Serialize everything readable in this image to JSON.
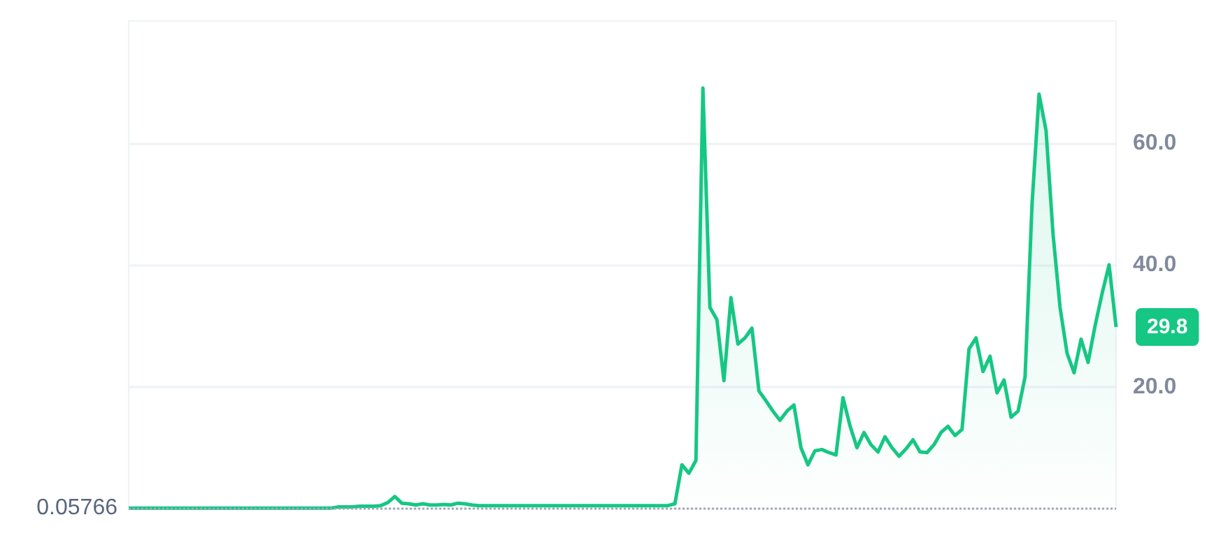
{
  "chart_data": {
    "type": "area",
    "categories": [
      null,
      null,
      null,
      null,
      null,
      null,
      null,
      null,
      null,
      null,
      null,
      null,
      null,
      null,
      null,
      null,
      null,
      null,
      null,
      null,
      null,
      null,
      null,
      null,
      null,
      null,
      null,
      null,
      null,
      null,
      null,
      null,
      null,
      null,
      null,
      null,
      null,
      null,
      null,
      null,
      null,
      null,
      null,
      null,
      null,
      null,
      null,
      null,
      null,
      null,
      null,
      null,
      null,
      null,
      null,
      null,
      null,
      null,
      null,
      null,
      null,
      null,
      null,
      null,
      null,
      null,
      null,
      null,
      null,
      null,
      null,
      null,
      null,
      null,
      null,
      null,
      null,
      null,
      null,
      null,
      null,
      null,
      null,
      null,
      null,
      null,
      null,
      null,
      null,
      null,
      null,
      null,
      null,
      null,
      null,
      null,
      null,
      null,
      null,
      null,
      null,
      null,
      null,
      null,
      null,
      null,
      null,
      null,
      null,
      null,
      null,
      null,
      null,
      null,
      null,
      null,
      null,
      null,
      null,
      null,
      null,
      null,
      null,
      null,
      null,
      null,
      null,
      null,
      null,
      null,
      null,
      null,
      null,
      null,
      null,
      null,
      null,
      null,
      null,
      null,
      null,
      null
    ],
    "series": [
      {
        "color": "#16c784",
        "value_labels": [
          null,
          null,
          null,
          null,
          null,
          null,
          null,
          null,
          null,
          null,
          null,
          null,
          null,
          null,
          null,
          null,
          null,
          null,
          null,
          null,
          null,
          null,
          null,
          null,
          null,
          null,
          null,
          null,
          null,
          null,
          null,
          null,
          null,
          null,
          null,
          null,
          null,
          null,
          null,
          null,
          null,
          null,
          null,
          null,
          null,
          null,
          null,
          null,
          null,
          null,
          null,
          null,
          null,
          null,
          null,
          null,
          null,
          null,
          null,
          null,
          null,
          null,
          null,
          null,
          null,
          null,
          null,
          null,
          null,
          null,
          null,
          null,
          null,
          null,
          null,
          null,
          null,
          null,
          null,
          null,
          null,
          null,
          null,
          null,
          null,
          null,
          null,
          null,
          null,
          null,
          null,
          null,
          null,
          null,
          null,
          null,
          null,
          null,
          null,
          null,
          null,
          null,
          null,
          null,
          null,
          null,
          null,
          null,
          null,
          null,
          null,
          null,
          null,
          null,
          null,
          null,
          null,
          null,
          null,
          null,
          null,
          null,
          null,
          null,
          null,
          null,
          null,
          null,
          null,
          null,
          null,
          null,
          null,
          null,
          null,
          null,
          null,
          null,
          null,
          null,
          null,
          "29.8"
        ],
        "values": [
          0.1,
          0.1,
          0.1,
          0.1,
          0.1,
          0.1,
          0.1,
          0.1,
          0.1,
          0.1,
          0.1,
          0.1,
          0.1,
          0.1,
          0.1,
          0.1,
          0.1,
          0.1,
          0.1,
          0.1,
          0.1,
          0.1,
          0.1,
          0.1,
          0.1,
          0.1,
          0.1,
          0.1,
          0.1,
          0.1,
          0.3,
          0.3,
          0.3,
          0.4,
          0.4,
          0.4,
          0.5,
          1.0,
          2.0,
          0.9,
          0.8,
          0.6,
          0.8,
          0.6,
          0.6,
          0.7,
          0.6,
          0.9,
          0.8,
          0.6,
          0.5,
          0.5,
          0.5,
          0.5,
          0.5,
          0.5,
          0.5,
          0.5,
          0.5,
          0.5,
          0.5,
          0.5,
          0.5,
          0.5,
          0.5,
          0.5,
          0.5,
          0.5,
          0.5,
          0.5,
          0.5,
          0.5,
          0.5,
          0.5,
          0.5,
          0.5,
          0.5,
          0.5,
          0.8,
          7.2,
          5.8,
          7.9,
          69,
          33,
          31,
          21,
          34.6,
          27,
          28,
          29.6,
          19.3,
          17.7,
          16,
          14.5,
          16,
          17,
          10,
          7.2,
          9.5,
          9.7,
          9.2,
          8.8,
          18.2,
          13.6,
          10,
          12.5,
          10.5,
          9.3,
          11.8,
          10,
          8.6,
          9.8,
          11.3,
          9.3,
          9.2,
          10.5,
          12.5,
          13.5,
          12,
          13,
          26.2,
          28,
          22.5,
          25,
          19,
          21.1,
          15,
          16,
          21.6,
          50,
          68,
          62,
          45,
          33,
          25.5,
          22.3,
          27.8,
          24,
          30,
          35.3,
          40,
          29.8
        ]
      }
    ],
    "ylim": [
      0,
      80
    ],
    "yticks": [
      {
        "value": 20,
        "label": "20.0"
      },
      {
        "value": 40,
        "label": "40.0"
      },
      {
        "value": 60,
        "label": "60.0"
      }
    ],
    "grid": "y",
    "ref_lines": [
      {
        "axis": "y",
        "value": 0.05766,
        "label": "0.05766",
        "color": "#a1a7bb",
        "line_style": "dotted"
      }
    ],
    "tick_labels": "y"
  }
}
